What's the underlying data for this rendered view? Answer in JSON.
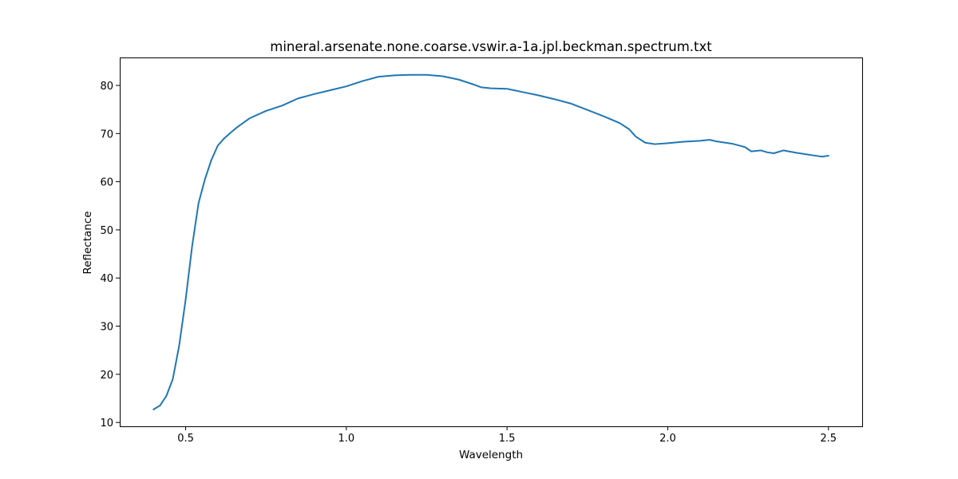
{
  "chart_data": {
    "type": "line",
    "title": "mineral.arsenate.none.coarse.vswir.a-1a.jpl.beckman.spectrum.txt",
    "xlabel": "Wavelength",
    "ylabel": "Reflectance",
    "xlim": [
      0.295,
      2.605
    ],
    "ylim": [
      9.2,
      85.8
    ],
    "xticks": [
      0.5,
      1.0,
      1.5,
      2.0,
      2.5
    ],
    "xtick_labels": [
      "0.5",
      "1.0",
      "1.5",
      "2.0",
      "2.5"
    ],
    "yticks": [
      10,
      20,
      30,
      40,
      50,
      60,
      70,
      80
    ],
    "ytick_labels": [
      "10",
      "20",
      "30",
      "40",
      "50",
      "60",
      "70",
      "80"
    ],
    "grid": false,
    "legend": "none",
    "line_color": "#1f77b4",
    "series": [
      {
        "x": [
          0.4,
          0.42,
          0.44,
          0.46,
          0.48,
          0.5,
          0.52,
          0.54,
          0.56,
          0.58,
          0.6,
          0.62,
          0.64,
          0.66,
          0.7,
          0.75,
          0.8,
          0.85,
          0.9,
          0.95,
          1.0,
          1.05,
          1.1,
          1.15,
          1.2,
          1.25,
          1.3,
          1.35,
          1.4,
          1.42,
          1.45,
          1.5,
          1.55,
          1.6,
          1.65,
          1.7,
          1.75,
          1.8,
          1.85,
          1.88,
          1.9,
          1.93,
          1.96,
          2.0,
          2.05,
          2.1,
          2.13,
          2.15,
          2.2,
          2.24,
          2.26,
          2.29,
          2.31,
          2.33,
          2.36,
          2.4,
          2.45,
          2.48,
          2.5
        ],
        "y": [
          12.7,
          13.5,
          15.5,
          19.0,
          26.0,
          35.5,
          46.5,
          55.5,
          60.5,
          64.5,
          67.5,
          69.0,
          70.2,
          71.3,
          73.2,
          74.7,
          75.8,
          77.3,
          78.2,
          79.0,
          79.8,
          80.9,
          81.8,
          82.1,
          82.2,
          82.2,
          81.9,
          81.2,
          80.1,
          79.6,
          79.4,
          79.3,
          78.6,
          77.9,
          77.1,
          76.2,
          74.9,
          73.6,
          72.2,
          70.9,
          69.4,
          68.1,
          67.8,
          68.0,
          68.3,
          68.5,
          68.7,
          68.4,
          67.9,
          67.2,
          66.3,
          66.5,
          66.1,
          65.9,
          66.5,
          66.0,
          65.5,
          65.2,
          65.4
        ]
      }
    ]
  }
}
